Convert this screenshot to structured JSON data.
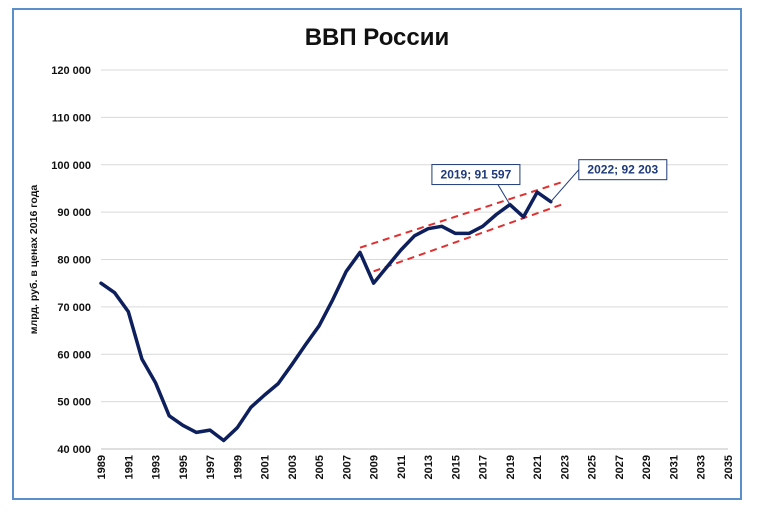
{
  "chart_data": {
    "type": "line",
    "title": "ВВП России",
    "ylabel": "млрд. руб. в ценах 2016 года",
    "xlabel": "",
    "ylim": [
      40000,
      120000
    ],
    "xlim": [
      1989,
      2035
    ],
    "yticks": [
      40000,
      50000,
      60000,
      70000,
      80000,
      90000,
      100000,
      110000,
      120000
    ],
    "ytick_labels": [
      "40 000",
      "50 000",
      "60 000",
      "70 000",
      "80 000",
      "90 000",
      "100 000",
      "110 000",
      "120 000"
    ],
    "xtick_labels": [
      "1989",
      "1991",
      "1993",
      "1995",
      "1997",
      "1999",
      "2001",
      "2003",
      "2005",
      "2007",
      "2009",
      "2011",
      "2013",
      "2015",
      "2017",
      "2019",
      "2021",
      "2023",
      "2025",
      "2027",
      "2029",
      "2031",
      "2033",
      "2035"
    ],
    "grid": true,
    "series": [
      {
        "color": "#0d1f5c",
        "x": [
          1989,
          1990,
          1991,
          1992,
          1993,
          1994,
          1995,
          1996,
          1997,
          1998,
          1999,
          2000,
          2001,
          2002,
          2003,
          2004,
          2005,
          2006,
          2007,
          2008,
          2009,
          2010,
          2011,
          2012,
          2013,
          2014,
          2015,
          2016,
          2017,
          2018,
          2019,
          2020,
          2021,
          2022
        ],
        "y": [
          75000,
          73000,
          69000,
          59000,
          54000,
          47000,
          45000,
          43500,
          44000,
          41800,
          44500,
          48800,
          51400,
          53800,
          57800,
          62000,
          66000,
          71500,
          77500,
          81500,
          75000,
          78500,
          82000,
          85000,
          86500,
          87000,
          85500,
          85500,
          87000,
          89500,
          91597,
          89000,
          94200,
          92203
        ]
      }
    ],
    "trend_lines": [
      {
        "color": "#e03030",
        "x": [
          2008,
          2023
        ],
        "y": [
          82500,
          96500
        ]
      },
      {
        "color": "#e03030",
        "x": [
          2009,
          2023
        ],
        "y": [
          77500,
          91800
        ]
      }
    ],
    "annotations": [
      {
        "text": "2019; 91 597",
        "x": 2019,
        "y": 91597
      },
      {
        "text": "2022; 92 203",
        "x": 2022,
        "y": 92203
      }
    ]
  }
}
